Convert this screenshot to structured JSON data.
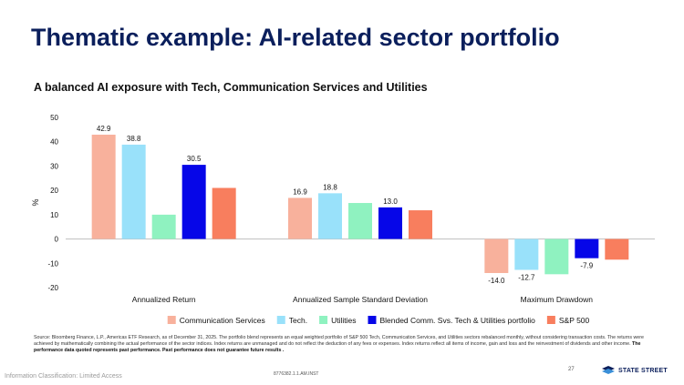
{
  "slide": {
    "title": "Thematic example: AI-related sector portfolio",
    "subtitle": "A balanced AI exposure with Tech, Communication Services and Utilities",
    "source_text": "Source: Bloomberg Finance, L.P., Americas ETF Research, as of December 31, 2025. The portfolio blend represents an equal weighted portfolio of S&P 500 Tech, Communication Services, and Utilities sectors rebalanced monthly, without considering transaction costs. The returns were achieved by mathematically combining the actual performance of the sector indices. Index returns are unmanaged and do not reflect the deduction of any fees or expenses. Index returns reflect all items of income, gain and loss and the reinvestment of dividends and other income.",
    "source_bold": "The performance data quoted represents past performance. Past performance does not guarantee future results .",
    "classification": "Information Classification: Limited Access",
    "doc_code": "8776382.1.1.AM.INST",
    "page_number": "27",
    "logo_text": "STATE STREET"
  },
  "chart_data": {
    "type": "bar",
    "categories": [
      "Annualized Return",
      "Annualized Sample Standard Deviation",
      "Maximum Drawdown"
    ],
    "series": [
      {
        "name": "Communication Services",
        "color": "#f8b19c",
        "values": [
          42.9,
          16.9,
          -14.0
        ],
        "labels": [
          "42.9",
          "16.9",
          "-14.0"
        ]
      },
      {
        "name": "Tech.",
        "color": "#99e1fa",
        "values": [
          38.8,
          18.8,
          -12.7
        ],
        "labels": [
          "38.8",
          "18.8",
          "-12.7"
        ]
      },
      {
        "name": "Utilities",
        "color": "#8ff2c0",
        "values": [
          10.0,
          14.8,
          -14.5
        ],
        "labels": [
          "",
          "",
          ""
        ]
      },
      {
        "name": "Blended Comm. Svs. Tech & Utilities portfolio",
        "color": "#0606e8",
        "values": [
          30.5,
          13.0,
          -7.9
        ],
        "labels": [
          "30.5",
          "13.0",
          "-7.9"
        ]
      },
      {
        "name": "S&P 500",
        "color": "#f87e5e",
        "values": [
          21.0,
          11.8,
          -8.5
        ],
        "labels": [
          "",
          "",
          ""
        ]
      }
    ],
    "ylabel": "%",
    "ylim": [
      -20,
      50
    ],
    "yticks": [
      -20,
      -10,
      0,
      10,
      20,
      30,
      40,
      50
    ],
    "grid": false,
    "legend_position": "bottom"
  }
}
